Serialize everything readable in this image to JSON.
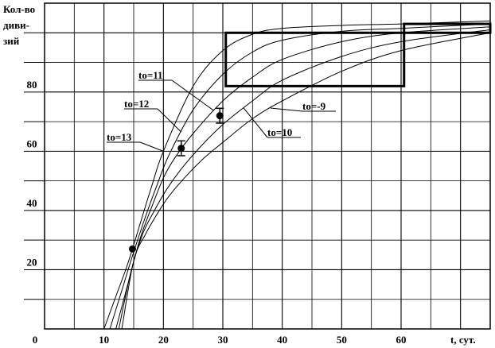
{
  "chart_data": {
    "type": "line",
    "title": "",
    "ylabel": "Кол-во дивизий",
    "ylabel_lines": [
      "Кол-во",
      "диви-",
      "зий"
    ],
    "xlabel": "t, сут.",
    "xlim": [
      0,
      75
    ],
    "ylim": [
      0,
      110
    ],
    "grid": true,
    "x_ticks": [
      {
        "value": 0,
        "label": "0"
      },
      {
        "value": 10,
        "label": "10"
      },
      {
        "value": 20,
        "label": "20"
      },
      {
        "value": 30,
        "label": "30"
      },
      {
        "value": 40,
        "label": "40"
      },
      {
        "value": 50,
        "label": "50"
      },
      {
        "value": 60,
        "label": "60"
      }
    ],
    "y_ticks": [
      {
        "value": 20,
        "label": "20"
      },
      {
        "value": 40,
        "label": "40"
      },
      {
        "value": 60,
        "label": "60"
      },
      {
        "value": 80,
        "label": "80"
      }
    ],
    "series": [
      {
        "name": "to=13",
        "x": [
          10,
          12,
          14,
          16,
          18,
          20,
          25,
          30,
          35,
          40,
          50,
          60,
          75
        ],
        "y": [
          0,
          11,
          22,
          35,
          48,
          60,
          82,
          94,
          99.5,
          101.5,
          102.5,
          103,
          104
        ]
      },
      {
        "name": "to=12",
        "x": [
          11,
          13,
          15,
          17,
          19,
          21,
          25,
          30,
          35,
          40,
          50,
          60,
          75
        ],
        "y": [
          0,
          13,
          26,
          38,
          49,
          59,
          74,
          86,
          93.5,
          97.5,
          100.5,
          101.5,
          103
        ]
      },
      {
        "name": "to=11",
        "x": [
          12,
          14,
          16,
          18,
          20,
          22,
          25,
          30,
          35,
          40,
          50,
          60,
          75
        ],
        "y": [
          0,
          15,
          30,
          41,
          51,
          58,
          66,
          77,
          85,
          91,
          97,
          100,
          102
        ]
      },
      {
        "name": "to=10",
        "x": [
          12.5,
          14.5,
          16.5,
          18.5,
          20.5,
          23,
          26,
          30,
          35,
          40,
          50,
          60,
          75
        ],
        "y": [
          0,
          19,
          32,
          40,
          47,
          54,
          61,
          69,
          77,
          84,
          92,
          97,
          101
        ]
      },
      {
        "name": "to=-9",
        "x": [
          13,
          15,
          17,
          19,
          21,
          24,
          27,
          30,
          35,
          40,
          50,
          60,
          75
        ],
        "y": [
          0,
          23,
          32,
          39,
          45,
          52,
          58,
          63,
          71,
          77,
          87,
          94,
          100
        ]
      }
    ],
    "observed_points": [
      {
        "x": 14.8,
        "y": 27,
        "err": 0
      },
      {
        "x": 23,
        "y": 61,
        "err": 2.5
      },
      {
        "x": 29.5,
        "y": 72,
        "err": 2.5
      }
    ],
    "rectangles": [
      {
        "x0": 30.5,
        "x1": 60.5,
        "y0": 82,
        "y1": 100
      },
      {
        "x0": 60.5,
        "x1": 75,
        "y0": 100,
        "y1": 103
      }
    ],
    "annotations": [
      {
        "text": "to=13",
        "series": "to=13",
        "at_x": 20
      },
      {
        "text": "to=12",
        "series": "to=12",
        "at_x": 23
      },
      {
        "text": "to=11",
        "series": "to=11",
        "at_x": 28.5
      },
      {
        "text": "to=10",
        "series": "to=10",
        "at_x": 33.5
      },
      {
        "text": "to=-9",
        "series": "to=-9",
        "at_x": 38
      }
    ]
  }
}
